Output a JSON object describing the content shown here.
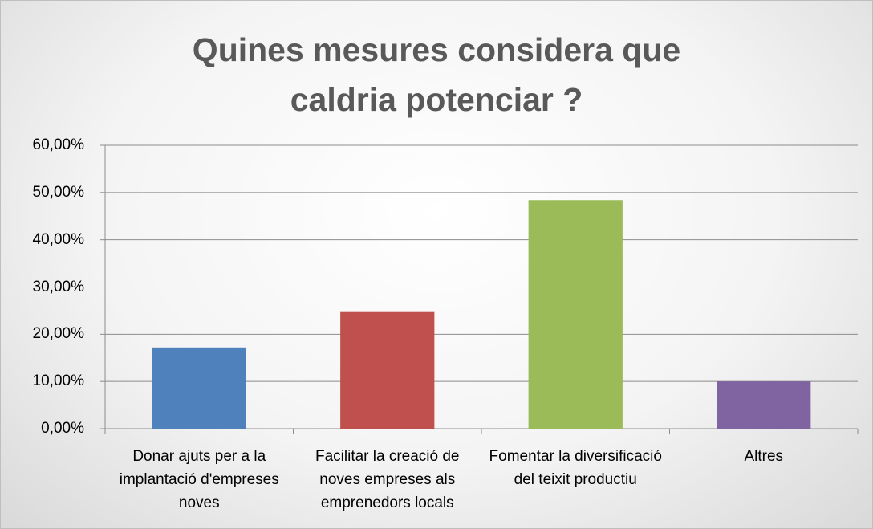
{
  "chart_data": {
    "type": "bar",
    "title": "Quines mesures considera que caldria potenciar ?",
    "categories": [
      "Donar ajuts per a la implantació d'empreses noves",
      "Facilitar la creació de noves empreses als emprenedors locals",
      "Fomentar la diversificació del teixit productiu",
      "Altres"
    ],
    "values": [
      17.2,
      24.7,
      48.4,
      10.0
    ],
    "colors": [
      "#4f81bd",
      "#c0504d",
      "#9bbb59",
      "#8064a2"
    ],
    "ylim": [
      0,
      60
    ],
    "yticks": [
      {
        "value": 0,
        "label": "0,00%"
      },
      {
        "value": 10,
        "label": "10,00%"
      },
      {
        "value": 20,
        "label": "20,00%"
      },
      {
        "value": 30,
        "label": "30,00%"
      },
      {
        "value": 40,
        "label": "40,00%"
      },
      {
        "value": 50,
        "label": "50,00%"
      },
      {
        "value": 60,
        "label": "60,00%"
      }
    ],
    "grid": true
  }
}
